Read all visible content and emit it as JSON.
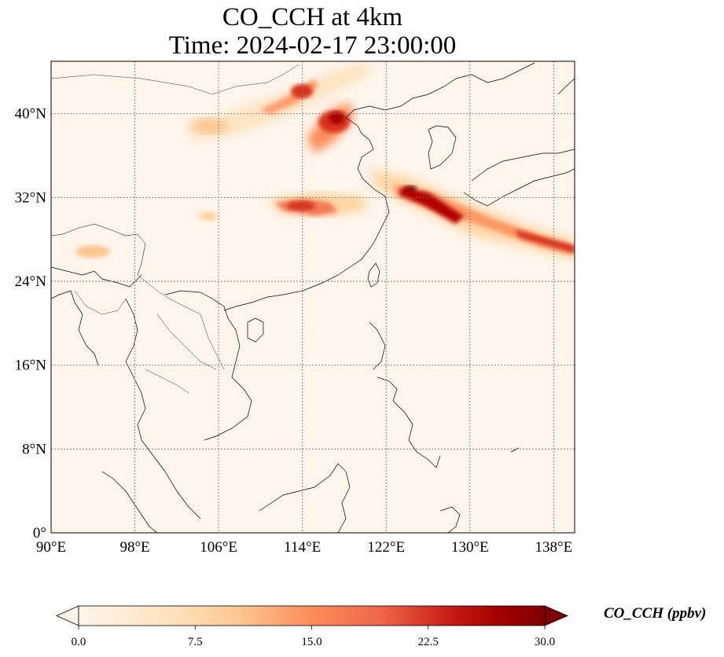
{
  "title": {
    "line1": "CO_CCH at 4km",
    "line2": "Time: 2024-02-17 23:00:00"
  },
  "map": {
    "lon_range": [
      90,
      140
    ],
    "lat_range": [
      0,
      45
    ],
    "lon_ticks": [
      {
        "value": 90,
        "label": "90°E"
      },
      {
        "value": 98,
        "label": "98°E"
      },
      {
        "value": 106,
        "label": "106°E"
      },
      {
        "value": 114,
        "label": "114°E"
      },
      {
        "value": 122,
        "label": "122°E"
      },
      {
        "value": 130,
        "label": "130°E"
      },
      {
        "value": 138,
        "label": "138°E"
      }
    ],
    "lat_ticks": [
      {
        "value": 0,
        "label": "0°"
      },
      {
        "value": 8,
        "label": "8°N"
      },
      {
        "value": 16,
        "label": "16°N"
      },
      {
        "value": 24,
        "label": "24°N"
      },
      {
        "value": 32,
        "label": "32°N"
      },
      {
        "value": 40,
        "label": "40°N"
      }
    ],
    "gridlines": true,
    "background_color": "#fff5eb"
  },
  "colorbar": {
    "label": "CO_CCH (ppbv)",
    "min": 0,
    "max": 30,
    "ticks": [
      "0.0",
      "7.5",
      "15.0",
      "22.5",
      "30.0"
    ],
    "colors": [
      "#fff5eb",
      "#fdd49e",
      "#fdbb84",
      "#fc8d59",
      "#ef6548",
      "#d7301f",
      "#b30000",
      "#7f0000"
    ],
    "extend": "both"
  }
}
